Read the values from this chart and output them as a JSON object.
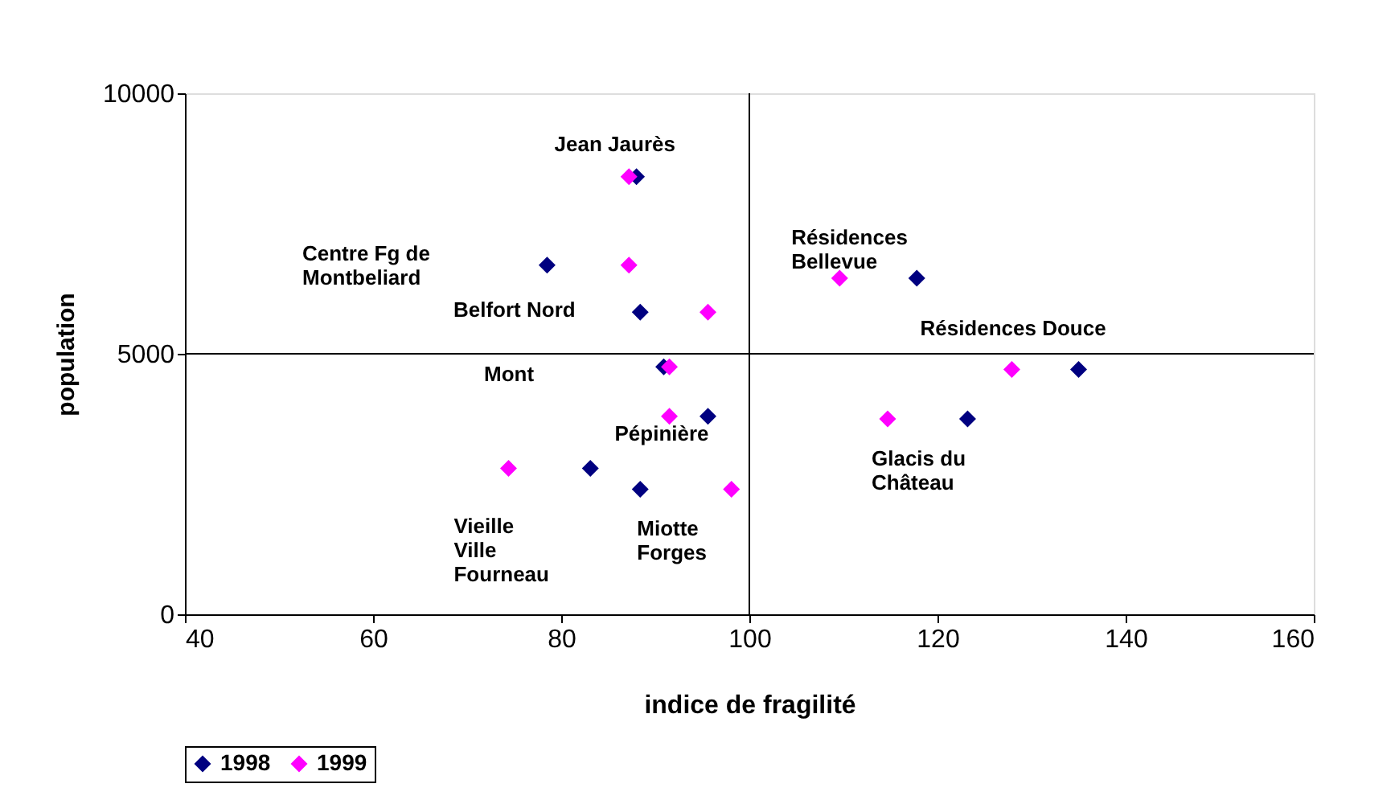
{
  "chart_data": {
    "type": "scatter",
    "xlabel": "indice de fragilité",
    "ylabel": "population",
    "xlim": [
      40,
      160
    ],
    "xticks": [
      40,
      60,
      80,
      100,
      120,
      140,
      160
    ],
    "ylim": [
      0,
      10000
    ],
    "yticks": [
      0,
      5000,
      10000
    ],
    "grid": false,
    "legend": "bottom",
    "marker": "diamond",
    "series": [
      {
        "name": "1998",
        "color": "#000080",
        "x": [
          88.0,
          78.5,
          88.4,
          90.9,
          95.6,
          83.1,
          88.4,
          117.8,
          123.2,
          135.0
        ],
        "values": [
          8400,
          6700,
          5800,
          4750,
          3800,
          2800,
          2400,
          6450,
          3750,
          4700
        ]
      },
      {
        "name": "1999",
        "color": "#ff00ff",
        "x": [
          87.2,
          87.2,
          95.6,
          91.5,
          91.5,
          74.4,
          98.1,
          109.6,
          114.7,
          127.9
        ],
        "values": [
          8400,
          6700,
          5800,
          4750,
          3800,
          2800,
          2400,
          6450,
          3750,
          4700
        ]
      }
    ],
    "ref_lines": [
      {
        "axis": "x",
        "value": 100,
        "color": "#000000"
      },
      {
        "axis": "y",
        "value": 5000,
        "color": "#000000"
      }
    ],
    "annotations": [
      {
        "text": "Jean Jaurès",
        "x": 88.0,
        "y": 8400
      },
      "Centre Fg de\nMontbeliard",
      "Belfort Nord",
      "Mont",
      {
        "text": "Pépinière",
        "x": 95.6,
        "y": 3800
      },
      {
        "text": "Vieille\nVille\nFourneau",
        "x": 74.4,
        "y": 2800
      },
      {
        "text": "Miotte\nForges",
        "x": 88.4,
        "y": 2400
      },
      {
        "text": "Résidences\nBellevue",
        "x": 109.6,
        "y": 6450
      },
      {
        "text": "Résidences Douce",
        "x": 127.9,
        "y": 4700
      },
      {
        "text": "Glacis du\nChâteau",
        "x": 114.7,
        "y": 3750
      }
    ]
  }
}
